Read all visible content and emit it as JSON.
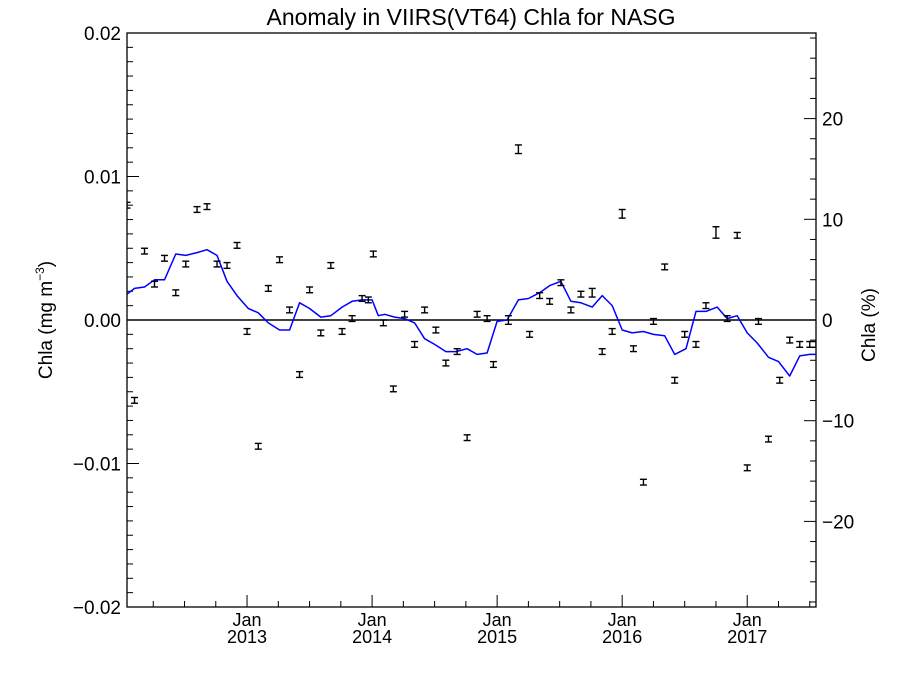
{
  "chart_data": {
    "type": "line",
    "title": "Anomaly in VIIRS(VT64) Chla for NASG",
    "ylabel_left": "Chla (mg m",
    "ylabel_left_sup": "−3",
    "ylabel_left_close": ")",
    "ylabel_right": "Chla (%)",
    "x_ticks": [
      {
        "t": 2013.0,
        "month": "Jan",
        "year": "2013"
      },
      {
        "t": 2014.0,
        "month": "Jan",
        "year": "2014"
      },
      {
        "t": 2015.0,
        "month": "Jan",
        "year": "2015"
      },
      {
        "t": 2016.0,
        "month": "Jan",
        "year": "2016"
      },
      {
        "t": 2017.0,
        "month": "Jan",
        "year": "2017"
      }
    ],
    "xlim": [
      2012.04,
      2017.55
    ],
    "ylim_left": [
      -0.02,
      0.02
    ],
    "ylim_right": [
      -28.5,
      28.5
    ],
    "yticks_left": [
      {
        "v": 0.02,
        "label": "0.02"
      },
      {
        "v": 0.01,
        "label": "0.01"
      },
      {
        "v": 0.0,
        "label": "0.00"
      },
      {
        "v": -0.01,
        "label": "−0.01"
      },
      {
        "v": -0.02,
        "label": "−0.02"
      }
    ],
    "yticks_right": [
      {
        "v": 20,
        "label": "20"
      },
      {
        "v": 10,
        "label": "10"
      },
      {
        "v": 0,
        "label": "0"
      },
      {
        "v": -10,
        "label": "−10"
      },
      {
        "v": -20,
        "label": "−20"
      }
    ],
    "zero_line": true,
    "series": [
      {
        "kind": "line",
        "axis": "left",
        "color": "#0000ff",
        "x": [
          2012.04,
          2012.1,
          2012.18,
          2012.26,
          2012.34,
          2012.43,
          2012.51,
          2012.6,
          2012.68,
          2012.76,
          2012.84,
          2012.92,
          2013.01,
          2013.09,
          2013.17,
          2013.26,
          2013.34,
          2013.42,
          2013.5,
          2013.59,
          2013.67,
          2013.76,
          2013.84,
          2013.92,
          2014.0,
          2014.05,
          2014.1,
          2014.18,
          2014.26,
          2014.34,
          2014.42,
          2014.5,
          2014.59,
          2014.67,
          2014.76,
          2014.84,
          2014.92,
          2015.0,
          2015.08,
          2015.17,
          2015.25,
          2015.34,
          2015.42,
          2015.51,
          2015.59,
          2015.67,
          2015.76,
          2015.84,
          2015.92,
          2016.0,
          2016.08,
          2016.17,
          2016.25,
          2016.34,
          2016.42,
          2016.51,
          2016.59,
          2016.67,
          2016.76,
          2016.84,
          2016.92,
          2017.0,
          2017.08,
          2017.17,
          2017.25,
          2017.34,
          2017.42,
          2017.5,
          2017.55
        ],
        "y": [
          0.0018,
          0.0022,
          0.0023,
          0.0028,
          0.0028,
          0.0046,
          0.0045,
          0.0047,
          0.0049,
          0.0045,
          0.0027,
          0.0017,
          0.0008,
          0.0005,
          -0.0002,
          -0.0007,
          -0.0007,
          0.0012,
          0.0008,
          0.0002,
          0.0003,
          0.0009,
          0.0013,
          0.0014,
          0.0014,
          0.0003,
          0.0004,
          0.0002,
          0.0001,
          -0.0002,
          -0.0013,
          -0.0017,
          -0.0022,
          -0.0022,
          -0.002,
          -0.0024,
          -0.0023,
          -0.0001,
          0.0,
          0.0014,
          0.0015,
          0.0019,
          0.0024,
          0.0027,
          0.0013,
          0.0012,
          0.0009,
          0.0017,
          0.001,
          -0.0007,
          -0.0009,
          -0.0008,
          -0.001,
          -0.0011,
          -0.0024,
          -0.002,
          0.0006,
          0.0006,
          0.0009,
          0.0001,
          0.0003,
          -0.0009,
          -0.0016,
          -0.0026,
          -0.0029,
          -0.0039,
          -0.0025,
          -0.0024,
          -0.0024
        ]
      },
      {
        "kind": "errorbar",
        "axis": "left",
        "color": "#000000",
        "x": [
          2012.04,
          2012.1,
          2012.18,
          2012.26,
          2012.34,
          2012.43,
          2012.51,
          2012.6,
          2012.68,
          2012.76,
          2012.84,
          2012.92,
          2013.0,
          2013.09,
          2013.17,
          2013.26,
          2013.34,
          2013.42,
          2013.5,
          2013.59,
          2013.67,
          2013.76,
          2013.84,
          2013.92,
          2013.97,
          2014.01,
          2014.09,
          2014.17,
          2014.26,
          2014.34,
          2014.42,
          2014.51,
          2014.59,
          2014.68,
          2014.76,
          2014.84,
          2014.92,
          2014.97,
          2015.09,
          2015.17,
          2015.26,
          2015.34,
          2015.42,
          2015.51,
          2015.59,
          2015.67,
          2015.76,
          2015.84,
          2015.92,
          2016.0,
          2016.09,
          2016.17,
          2016.25,
          2016.34,
          2016.42,
          2016.5,
          2016.59,
          2016.67,
          2016.75,
          2016.84,
          2016.92,
          2017.0,
          2017.09,
          2017.17,
          2017.26,
          2017.34,
          2017.42,
          2017.5,
          2017.55
        ],
        "y": [
          0.008,
          -0.0056,
          0.0048,
          0.0025,
          0.0043,
          0.0019,
          0.0039,
          0.0077,
          0.0079,
          0.0039,
          0.0038,
          0.0052,
          -0.0008,
          -0.0088,
          0.0022,
          0.0042,
          0.0007,
          -0.0038,
          0.0021,
          -0.0009,
          0.0038,
          -0.0008,
          0.0001,
          0.0015,
          0.0014,
          0.0046,
          -0.0002,
          -0.0048,
          0.0004,
          -0.0017,
          0.0007,
          -0.0007,
          -0.003,
          -0.0022,
          -0.0082,
          0.0004,
          0.0001,
          -0.0031,
          0.0,
          0.0119,
          -0.001,
          0.0017,
          0.0013,
          0.0026,
          0.0007,
          0.0018,
          0.0019,
          -0.0022,
          -0.0008,
          0.0074,
          -0.002,
          -0.0113,
          -0.0001,
          0.0037,
          -0.0042,
          -0.001,
          -0.0017,
          0.001,
          0.0061,
          0.0001,
          0.0059,
          -0.0103,
          -0.0001,
          -0.0083,
          -0.0042,
          -0.0014,
          -0.0017,
          -0.0017,
          -0.0017
        ],
        "err": [
          0.0002,
          0.0002,
          0.0002,
          0.0002,
          0.0002,
          0.0002,
          0.0002,
          0.0002,
          0.0002,
          0.0002,
          0.0002,
          0.0002,
          0.0002,
          0.0002,
          0.0002,
          0.0002,
          0.0002,
          0.0002,
          0.0002,
          0.0002,
          0.0002,
          0.0002,
          0.0002,
          0.0002,
          0.0002,
          0.0002,
          0.0002,
          0.0002,
          0.0002,
          0.0002,
          0.0002,
          0.0002,
          0.0002,
          0.0002,
          0.0002,
          0.0002,
          0.0002,
          0.0002,
          0.0003,
          0.0003,
          0.0002,
          0.0002,
          0.0002,
          0.0002,
          0.0002,
          0.0002,
          0.0003,
          0.0002,
          0.0002,
          0.0003,
          0.0002,
          0.0002,
          0.0002,
          0.0002,
          0.0002,
          0.0002,
          0.0002,
          0.0002,
          0.0004,
          0.0002,
          0.0002,
          0.0002,
          0.0002,
          0.0002,
          0.0002,
          0.0002,
          0.0002,
          0.0002,
          0.0002
        ]
      }
    ]
  }
}
